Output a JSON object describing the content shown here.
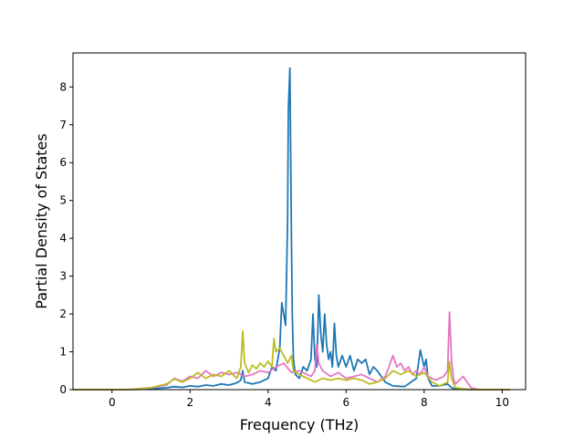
{
  "chart_data": {
    "type": "line",
    "title": "",
    "xlabel": "Frequency (THz)",
    "ylabel": "Partial Density of States",
    "xlim": [
      -1.0,
      10.6
    ],
    "ylim": [
      0,
      8.9
    ],
    "xticks": [
      "0",
      "2",
      "4",
      "6",
      "8",
      "10"
    ],
    "yticks": [
      "0",
      "1",
      "2",
      "3",
      "4",
      "5",
      "6",
      "7",
      "8"
    ],
    "grid": false,
    "legend": "none",
    "series": [
      {
        "color": "#1f77b4",
        "points": [
          [
            -1.0,
            0
          ],
          [
            0.4,
            0
          ],
          [
            1.0,
            0.02
          ],
          [
            1.4,
            0.05
          ],
          [
            1.6,
            0.08
          ],
          [
            1.8,
            0.06
          ],
          [
            2.0,
            0.1
          ],
          [
            2.2,
            0.08
          ],
          [
            2.4,
            0.12
          ],
          [
            2.6,
            0.1
          ],
          [
            2.8,
            0.15
          ],
          [
            3.0,
            0.12
          ],
          [
            3.2,
            0.18
          ],
          [
            3.3,
            0.25
          ],
          [
            3.35,
            0.5
          ],
          [
            3.4,
            0.2
          ],
          [
            3.6,
            0.15
          ],
          [
            3.8,
            0.2
          ],
          [
            4.0,
            0.3
          ],
          [
            4.1,
            0.6
          ],
          [
            4.2,
            0.5
          ],
          [
            4.3,
            1.1
          ],
          [
            4.35,
            2.3
          ],
          [
            4.4,
            2.0
          ],
          [
            4.45,
            1.7
          ],
          [
            4.5,
            4.5
          ],
          [
            4.52,
            7.4
          ],
          [
            4.56,
            8.5
          ],
          [
            4.6,
            4.0
          ],
          [
            4.62,
            2.0
          ],
          [
            4.65,
            0.8
          ],
          [
            4.7,
            0.4
          ],
          [
            4.8,
            0.3
          ],
          [
            4.9,
            0.6
          ],
          [
            5.0,
            0.5
          ],
          [
            5.1,
            0.8
          ],
          [
            5.15,
            2.0
          ],
          [
            5.2,
            0.8
          ],
          [
            5.25,
            0.6
          ],
          [
            5.3,
            2.5
          ],
          [
            5.35,
            1.5
          ],
          [
            5.4,
            1.0
          ],
          [
            5.45,
            2.0
          ],
          [
            5.5,
            1.2
          ],
          [
            5.55,
            0.8
          ],
          [
            5.6,
            1.0
          ],
          [
            5.65,
            0.6
          ],
          [
            5.7,
            1.75
          ],
          [
            5.75,
            0.9
          ],
          [
            5.8,
            0.6
          ],
          [
            5.9,
            0.9
          ],
          [
            6.0,
            0.6
          ],
          [
            6.1,
            0.9
          ],
          [
            6.2,
            0.5
          ],
          [
            6.3,
            0.8
          ],
          [
            6.4,
            0.7
          ],
          [
            6.5,
            0.8
          ],
          [
            6.6,
            0.4
          ],
          [
            6.7,
            0.6
          ],
          [
            6.8,
            0.5
          ],
          [
            6.9,
            0.35
          ],
          [
            7.0,
            0.2
          ],
          [
            7.2,
            0.1
          ],
          [
            7.5,
            0.08
          ],
          [
            7.8,
            0.3
          ],
          [
            7.9,
            1.05
          ],
          [
            8.0,
            0.6
          ],
          [
            8.05,
            0.8
          ],
          [
            8.1,
            0.3
          ],
          [
            8.2,
            0.1
          ],
          [
            8.4,
            0.1
          ],
          [
            8.6,
            0.15
          ],
          [
            8.7,
            0.05
          ],
          [
            8.8,
            0.02
          ],
          [
            9.2,
            0
          ],
          [
            10.2,
            0
          ]
        ]
      },
      {
        "color": "#e377c2",
        "points": [
          [
            -1.0,
            0
          ],
          [
            0.4,
            0
          ],
          [
            1.0,
            0.05
          ],
          [
            1.4,
            0.12
          ],
          [
            1.6,
            0.3
          ],
          [
            1.8,
            0.22
          ],
          [
            2.0,
            0.35
          ],
          [
            2.2,
            0.3
          ],
          [
            2.4,
            0.5
          ],
          [
            2.6,
            0.35
          ],
          [
            2.8,
            0.45
          ],
          [
            3.0,
            0.4
          ],
          [
            3.2,
            0.45
          ],
          [
            3.4,
            0.35
          ],
          [
            3.6,
            0.4
          ],
          [
            3.8,
            0.5
          ],
          [
            4.0,
            0.45
          ],
          [
            4.2,
            0.6
          ],
          [
            4.4,
            0.7
          ],
          [
            4.6,
            0.45
          ],
          [
            4.8,
            0.5
          ],
          [
            5.0,
            0.4
          ],
          [
            5.1,
            0.35
          ],
          [
            5.2,
            0.5
          ],
          [
            5.25,
            1.2
          ],
          [
            5.3,
            0.7
          ],
          [
            5.4,
            0.5
          ],
          [
            5.6,
            0.35
          ],
          [
            5.8,
            0.45
          ],
          [
            6.0,
            0.3
          ],
          [
            6.2,
            0.35
          ],
          [
            6.4,
            0.4
          ],
          [
            6.6,
            0.3
          ],
          [
            6.8,
            0.2
          ],
          [
            7.0,
            0.35
          ],
          [
            7.1,
            0.6
          ],
          [
            7.2,
            0.9
          ],
          [
            7.3,
            0.6
          ],
          [
            7.4,
            0.7
          ],
          [
            7.5,
            0.5
          ],
          [
            7.6,
            0.6
          ],
          [
            7.7,
            0.4
          ],
          [
            7.8,
            0.5
          ],
          [
            7.9,
            0.4
          ],
          [
            8.0,
            0.6
          ],
          [
            8.1,
            0.35
          ],
          [
            8.2,
            0.3
          ],
          [
            8.3,
            0.25
          ],
          [
            8.4,
            0.3
          ],
          [
            8.5,
            0.35
          ],
          [
            8.6,
            0.5
          ],
          [
            8.65,
            2.05
          ],
          [
            8.7,
            0.8
          ],
          [
            8.75,
            0.3
          ],
          [
            8.8,
            0.15
          ],
          [
            9.0,
            0.35
          ],
          [
            9.1,
            0.2
          ],
          [
            9.2,
            0.05
          ],
          [
            9.4,
            0
          ],
          [
            10.2,
            0
          ]
        ]
      },
      {
        "color": "#bcbd22",
        "points": [
          [
            -1.0,
            0
          ],
          [
            0.4,
            0
          ],
          [
            1.0,
            0.05
          ],
          [
            1.4,
            0.15
          ],
          [
            1.6,
            0.28
          ],
          [
            1.8,
            0.2
          ],
          [
            2.0,
            0.3
          ],
          [
            2.2,
            0.45
          ],
          [
            2.4,
            0.3
          ],
          [
            2.6,
            0.4
          ],
          [
            2.8,
            0.35
          ],
          [
            3.0,
            0.5
          ],
          [
            3.2,
            0.3
          ],
          [
            3.3,
            0.6
          ],
          [
            3.35,
            1.55
          ],
          [
            3.4,
            0.7
          ],
          [
            3.5,
            0.45
          ],
          [
            3.6,
            0.65
          ],
          [
            3.7,
            0.55
          ],
          [
            3.8,
            0.7
          ],
          [
            3.9,
            0.6
          ],
          [
            4.0,
            0.75
          ],
          [
            4.1,
            0.6
          ],
          [
            4.15,
            1.35
          ],
          [
            4.2,
            1.0
          ],
          [
            4.3,
            1.1
          ],
          [
            4.4,
            0.9
          ],
          [
            4.5,
            0.7
          ],
          [
            4.6,
            0.9
          ],
          [
            4.65,
            0.5
          ],
          [
            4.8,
            0.4
          ],
          [
            5.0,
            0.3
          ],
          [
            5.2,
            0.2
          ],
          [
            5.4,
            0.3
          ],
          [
            5.6,
            0.25
          ],
          [
            5.8,
            0.3
          ],
          [
            6.0,
            0.25
          ],
          [
            6.2,
            0.3
          ],
          [
            6.4,
            0.25
          ],
          [
            6.6,
            0.15
          ],
          [
            6.8,
            0.2
          ],
          [
            7.0,
            0.3
          ],
          [
            7.2,
            0.5
          ],
          [
            7.4,
            0.4
          ],
          [
            7.6,
            0.5
          ],
          [
            7.8,
            0.35
          ],
          [
            8.0,
            0.45
          ],
          [
            8.2,
            0.2
          ],
          [
            8.4,
            0.1
          ],
          [
            8.6,
            0.2
          ],
          [
            8.65,
            0.75
          ],
          [
            8.7,
            0.3
          ],
          [
            8.8,
            0.05
          ],
          [
            9.2,
            0
          ],
          [
            10.2,
            0
          ]
        ]
      }
    ]
  }
}
